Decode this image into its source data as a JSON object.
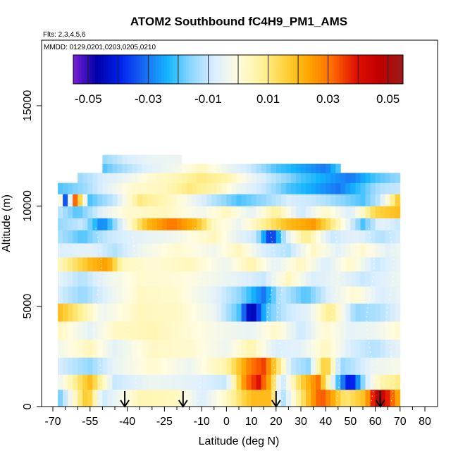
{
  "chart_data": {
    "type": "heatmap",
    "title": "ATOM2 Southbound fC4H9_PM1_AMS",
    "flights_note": "Flts: 2,3,4,5,6",
    "dates_note": "MMDD: 0129,0201,0203,0205,0210",
    "xlabel": "Latitude (deg N)",
    "ylabel": "Altitude (m)",
    "xlim": [
      -70,
      80
    ],
    "ylim": [
      0,
      17500
    ],
    "x_ticks": [
      -70,
      -55,
      -40,
      -25,
      -10,
      0,
      10,
      20,
      30,
      40,
      50,
      60,
      70,
      80
    ],
    "x_tick_labels": [
      "-70",
      "-55",
      "-40",
      "-25",
      "-10",
      "0",
      "10",
      "20",
      "30",
      "40",
      "50",
      "60",
      "70",
      "80"
    ],
    "x_minor_ticks": [
      -65,
      -60,
      -50,
      -45,
      -35,
      -30,
      -20,
      -15,
      -5,
      5,
      15,
      25,
      35,
      45,
      55,
      65,
      75
    ],
    "y_ticks": [
      0,
      5000,
      10000,
      15000
    ],
    "y_tick_labels": [
      "0",
      "5000",
      "10000",
      "15000"
    ],
    "colorbar": {
      "range": [
        -0.055,
        0.055
      ],
      "tick_values": [
        -0.05,
        -0.03,
        -0.01,
        0.01,
        0.03,
        0.05
      ],
      "tick_labels": [
        "-0.05",
        "-0.03",
        "-0.01",
        "0.01",
        "0.03",
        "0.05"
      ],
      "colors": [
        "#7a1fd6",
        "#0000a8",
        "#0022ee",
        "#1a6af2",
        "#14b4ff",
        "#8ed6ff",
        "#dcefff",
        "#fffce0",
        "#fff29a",
        "#ffd23c",
        "#ffa600",
        "#ff6a00",
        "#e01000",
        "#c00000",
        "#9b1b1b"
      ]
    },
    "arrow_latitudes": [
      -41,
      -17.5,
      20,
      62
    ],
    "altitude_bands": [
      {
        "alt": 500,
        "lat_range": [
          -68,
          70
        ],
        "values": [
          [
            -68,
            -0.02
          ],
          [
            -56,
            0.02
          ],
          [
            -50,
            -0.01
          ],
          [
            -35,
            0.005
          ],
          [
            -20,
            0.004
          ],
          [
            -10,
            -0.008
          ],
          [
            0,
            0.003
          ],
          [
            10,
            0.02
          ],
          [
            18,
            0.02
          ],
          [
            22,
            -0.015
          ],
          [
            30,
            0.01
          ],
          [
            38,
            0.035
          ],
          [
            48,
            0.01
          ],
          [
            56,
            0.02
          ],
          [
            61,
            0.05
          ],
          [
            66,
            0.035
          ],
          [
            70,
            0.02
          ]
        ]
      },
      {
        "alt": 1200,
        "lat_range": [
          -68,
          70
        ],
        "values": [
          [
            -68,
            -0.005
          ],
          [
            -55,
            0.02
          ],
          [
            -45,
            -0.01
          ],
          [
            -30,
            -0.004
          ],
          [
            -15,
            -0.006
          ],
          [
            0,
            -0.01
          ],
          [
            8,
            0.03
          ],
          [
            13,
            0.04
          ],
          [
            18,
            0.02
          ],
          [
            22,
            -0.012
          ],
          [
            30,
            0.015
          ],
          [
            37,
            0.03
          ],
          [
            45,
            -0.02
          ],
          [
            50,
            -0.045
          ],
          [
            56,
            -0.01
          ],
          [
            62,
            0.005
          ],
          [
            70,
            0.01
          ]
        ]
      },
      {
        "alt": 2000,
        "lat_range": [
          -68,
          70
        ],
        "values": [
          [
            -68,
            -0.008
          ],
          [
            -55,
            -0.015
          ],
          [
            -45,
            -0.005
          ],
          [
            -30,
            0.002
          ],
          [
            -15,
            -0.004
          ],
          [
            0,
            0.006
          ],
          [
            10,
            0.03
          ],
          [
            15,
            0.035
          ],
          [
            20,
            0.015
          ],
          [
            26,
            -0.01
          ],
          [
            33,
            -0.015
          ],
          [
            40,
            0.02
          ],
          [
            46,
            -0.015
          ],
          [
            53,
            -0.01
          ],
          [
            60,
            -0.004
          ],
          [
            70,
            -0.002
          ]
        ]
      },
      {
        "alt": 2900,
        "lat_range": [
          -68,
          70
        ],
        "values": [
          [
            -68,
            -0.003
          ],
          [
            -55,
            0.004
          ],
          [
            -45,
            -0.006
          ],
          [
            -30,
            0.003
          ],
          [
            -15,
            0.002
          ],
          [
            0,
            -0.004
          ],
          [
            10,
            0.006
          ],
          [
            20,
            -0.008
          ],
          [
            30,
            -0.006
          ],
          [
            40,
            0.004
          ],
          [
            50,
            -0.008
          ],
          [
            60,
            -0.012
          ],
          [
            70,
            -0.005
          ]
        ]
      },
      {
        "alt": 3800,
        "lat_range": [
          -68,
          70
        ],
        "values": [
          [
            -68,
            0.004
          ],
          [
            -55,
            -0.006
          ],
          [
            -45,
            0.003
          ],
          [
            -30,
            0.005
          ],
          [
            -15,
            0.001
          ],
          [
            0,
            -0.003
          ],
          [
            10,
            -0.005
          ],
          [
            20,
            0.003
          ],
          [
            30,
            -0.01
          ],
          [
            40,
            0.002
          ],
          [
            50,
            -0.006
          ],
          [
            60,
            -0.004
          ],
          [
            70,
            0.002
          ]
        ]
      },
      {
        "alt": 4700,
        "lat_range": [
          -68,
          70
        ],
        "values": [
          [
            -68,
            0.02
          ],
          [
            -60,
            0.01
          ],
          [
            -50,
            -0.004
          ],
          [
            -35,
            0.004
          ],
          [
            -20,
            0.003
          ],
          [
            -5,
            -0.004
          ],
          [
            5,
            -0.02
          ],
          [
            10,
            -0.05
          ],
          [
            16,
            -0.02
          ],
          [
            24,
            -0.01
          ],
          [
            33,
            -0.006
          ],
          [
            42,
            0.01
          ],
          [
            52,
            -0.015
          ],
          [
            62,
            -0.012
          ],
          [
            70,
            -0.006
          ]
        ]
      },
      {
        "alt": 5600,
        "lat_range": [
          -68,
          70
        ],
        "values": [
          [
            -68,
            -0.008
          ],
          [
            -58,
            -0.015
          ],
          [
            -48,
            -0.006
          ],
          [
            -35,
            0.003
          ],
          [
            -20,
            0.002
          ],
          [
            -5,
            -0.006
          ],
          [
            5,
            -0.015
          ],
          [
            15,
            -0.03
          ],
          [
            22,
            -0.01
          ],
          [
            32,
            -0.02
          ],
          [
            42,
            -0.006
          ],
          [
            52,
            0.002
          ],
          [
            62,
            -0.008
          ],
          [
            70,
            -0.005
          ]
        ]
      },
      {
        "alt": 6400,
        "lat_range": [
          -68,
          70
        ],
        "values": [
          [
            -68,
            -0.006
          ],
          [
            -58,
            -0.012
          ],
          [
            -48,
            -0.004
          ],
          [
            -35,
            0.002
          ],
          [
            -20,
            0.001
          ],
          [
            -5,
            -0.003
          ],
          [
            5,
            -0.006
          ],
          [
            15,
            -0.01
          ],
          [
            25,
            0.004
          ],
          [
            35,
            -0.008
          ],
          [
            45,
            -0.004
          ],
          [
            55,
            -0.01
          ],
          [
            65,
            -0.006
          ],
          [
            70,
            -0.004
          ]
        ]
      },
      {
        "alt": 7100,
        "lat_range": [
          -68,
          70
        ],
        "values": [
          [
            -68,
            0.003
          ],
          [
            -55,
            0.02
          ],
          [
            -48,
            0.025
          ],
          [
            -42,
            0.004
          ],
          [
            -30,
            0.001
          ],
          [
            -15,
            0.004
          ],
          [
            0,
            -0.004
          ],
          [
            10,
            0.006
          ],
          [
            20,
            -0.006
          ],
          [
            30,
            0.004
          ],
          [
            40,
            -0.008
          ],
          [
            50,
            0.003
          ],
          [
            60,
            -0.01
          ],
          [
            70,
            -0.005
          ]
        ]
      },
      {
        "alt": 7800,
        "lat_range": [
          -68,
          70
        ],
        "values": [
          [
            -68,
            -0.008
          ],
          [
            -55,
            -0.006
          ],
          [
            -45,
            -0.012
          ],
          [
            -35,
            -0.004
          ],
          [
            -20,
            0.002
          ],
          [
            -5,
            -0.003
          ],
          [
            5,
            0.004
          ],
          [
            15,
            -0.008
          ],
          [
            25,
            -0.012
          ],
          [
            35,
            0.003
          ],
          [
            45,
            -0.006
          ],
          [
            55,
            0.002
          ],
          [
            65,
            -0.006
          ],
          [
            70,
            -0.004
          ]
        ]
      },
      {
        "alt": 8500,
        "lat_range": [
          -68,
          70
        ],
        "values": [
          [
            -68,
            -0.012
          ],
          [
            -58,
            -0.02
          ],
          [
            -48,
            -0.01
          ],
          [
            -35,
            -0.006
          ],
          [
            -20,
            -0.003
          ],
          [
            -5,
            0.004
          ],
          [
            5,
            -0.006
          ],
          [
            12,
            -0.01
          ],
          [
            18,
            -0.04
          ],
          [
            24,
            -0.008
          ],
          [
            32,
            0.01
          ],
          [
            42,
            -0.01
          ],
          [
            52,
            -0.006
          ],
          [
            62,
            -0.012
          ],
          [
            70,
            -0.008
          ]
        ]
      },
      {
        "alt": 9100,
        "lat_range": [
          -68,
          70
        ],
        "values": [
          [
            -68,
            -0.015
          ],
          [
            -58,
            -0.01
          ],
          [
            -50,
            -0.03
          ],
          [
            -42,
            -0.006
          ],
          [
            -32,
            0.02
          ],
          [
            -22,
            0.03
          ],
          [
            -12,
            0.02
          ],
          [
            -5,
            0.003
          ],
          [
            5,
            -0.004
          ],
          [
            15,
            0.008
          ],
          [
            25,
            0.02
          ],
          [
            35,
            0.025
          ],
          [
            45,
            0.005
          ],
          [
            55,
            -0.02
          ],
          [
            62,
            -0.006
          ],
          [
            70,
            -0.01
          ]
        ]
      },
      {
        "alt": 9700,
        "lat_range": [
          -68,
          70
        ],
        "values": [
          [
            -68,
            -0.01
          ],
          [
            -60,
            -0.02
          ],
          [
            -50,
            -0.006
          ],
          [
            -40,
            0.002
          ],
          [
            -25,
            0.004
          ],
          [
            -10,
            -0.003
          ],
          [
            0,
            0.004
          ],
          [
            10,
            -0.006
          ],
          [
            20,
            0.008
          ],
          [
            30,
            -0.01
          ],
          [
            40,
            0.003
          ],
          [
            50,
            -0.008
          ],
          [
            60,
            0.015
          ],
          [
            70,
            0.02
          ]
        ]
      },
      {
        "alt": 10300,
        "lat_range": [
          -68,
          70
        ],
        "values": [
          [
            -68,
            0.015
          ],
          [
            -64,
            -0.05
          ],
          [
            -62,
            0.04
          ],
          [
            -55,
            -0.02
          ],
          [
            -45,
            -0.01
          ],
          [
            -35,
            0.01
          ],
          [
            -20,
            0.002
          ],
          [
            -5,
            -0.012
          ],
          [
            5,
            -0.02
          ],
          [
            15,
            -0.015
          ],
          [
            25,
            -0.008
          ],
          [
            35,
            -0.01
          ],
          [
            45,
            -0.015
          ],
          [
            55,
            -0.02
          ],
          [
            62,
            -0.01
          ],
          [
            70,
            0.02
          ]
        ]
      },
      {
        "alt": 10900,
        "lat_range": [
          -68,
          70
        ],
        "values": [
          [
            -68,
            -0.02
          ],
          [
            -58,
            -0.015
          ],
          [
            -48,
            -0.006
          ],
          [
            -38,
            0.002
          ],
          [
            -25,
            0.004
          ],
          [
            -15,
            0.01
          ],
          [
            -5,
            0.006
          ],
          [
            5,
            -0.004
          ],
          [
            15,
            -0.01
          ],
          [
            25,
            -0.02
          ],
          [
            35,
            -0.025
          ],
          [
            45,
            -0.03
          ],
          [
            55,
            -0.02
          ],
          [
            62,
            -0.012
          ],
          [
            70,
            -0.01
          ]
        ]
      },
      {
        "alt": 11400,
        "lat_range": [
          -60,
          70
        ],
        "values": [
          [
            -60,
            -0.015
          ],
          [
            -50,
            -0.008
          ],
          [
            -40,
            -0.004
          ],
          [
            -30,
            0.002
          ],
          [
            -20,
            0.005
          ],
          [
            -10,
            0.01
          ],
          [
            0,
            0.006
          ],
          [
            10,
            -0.004
          ],
          [
            20,
            -0.012
          ],
          [
            30,
            -0.02
          ],
          [
            40,
            -0.025
          ],
          [
            50,
            -0.03
          ],
          [
            60,
            -0.02
          ],
          [
            70,
            -0.015
          ]
        ]
      },
      {
        "alt": 11900,
        "lat_range": [
          -50,
          45
        ],
        "values": [
          [
            -50,
            -0.02
          ],
          [
            -40,
            -0.012
          ],
          [
            -30,
            -0.006
          ],
          [
            -20,
            -0.003
          ],
          [
            -10,
            0.004
          ],
          [
            0,
            -0.004
          ],
          [
            10,
            -0.01
          ],
          [
            20,
            -0.02
          ],
          [
            30,
            -0.025
          ],
          [
            40,
            -0.03
          ],
          [
            45,
            -0.02
          ]
        ]
      },
      {
        "alt": 12300,
        "lat_range": [
          -50,
          -18
        ],
        "values": [
          [
            -50,
            -0.015
          ],
          [
            -40,
            -0.008
          ],
          [
            -30,
            -0.005
          ],
          [
            -18,
            -0.004
          ]
        ]
      }
    ]
  }
}
